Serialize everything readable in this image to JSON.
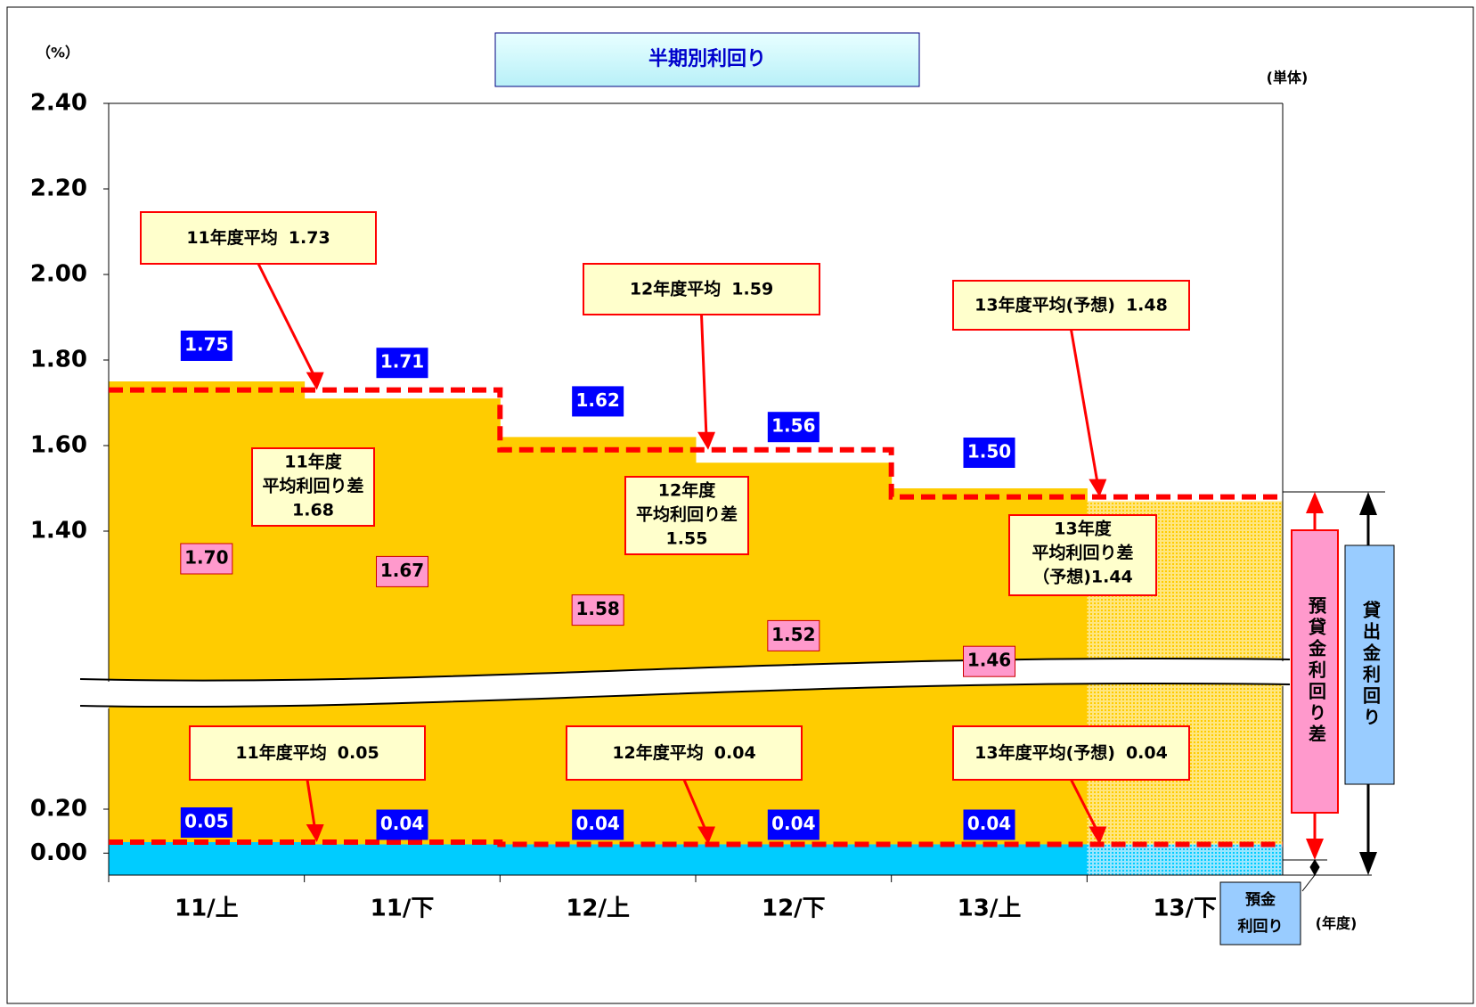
{
  "chart_data": {
    "type": "step-area",
    "title": "半期別利回り",
    "y_unit": "（%）",
    "scope": "(単体)",
    "x_unit": "(年度)",
    "categories": [
      "11/上",
      "11/下",
      "12/上",
      "12/下",
      "13/上",
      "13/下"
    ],
    "series": [
      {
        "name": "貸出金利回り",
        "color": "#ffcc00",
        "label_color": "#0000ff",
        "legend_color": "#99ccff",
        "values": [
          1.75,
          1.71,
          1.62,
          1.56,
          1.5,
          1.47
        ],
        "value_labels": [
          "1.75",
          "1.71",
          "1.62",
          "1.56",
          "1.50",
          null
        ],
        "hatch": [
          false,
          false,
          false,
          false,
          false,
          true
        ]
      },
      {
        "name": "預貸金利回り差",
        "color": "#ff99cc",
        "values": [
          1.7,
          1.67,
          1.58,
          1.52,
          1.46,
          null
        ],
        "value_labels": [
          "1.70",
          "1.67",
          "1.58",
          "1.52",
          "1.46",
          null
        ]
      },
      {
        "name": "預金利回り",
        "color": "#00ccff",
        "label_color": "#0000ff",
        "legend_color": "#99ccff",
        "values": [
          0.05,
          0.04,
          0.04,
          0.04,
          0.04,
          0.04
        ],
        "value_labels": [
          "0.05",
          "0.04",
          "0.04",
          "0.04",
          "0.04",
          null
        ],
        "hatch": [
          false,
          false,
          false,
          false,
          false,
          true
        ]
      }
    ],
    "loan_averages": {
      "labels": [
        "11年度平均",
        "12年度平均",
        "13年度平均(予想)"
      ],
      "values": [
        1.73,
        1.59,
        1.48
      ],
      "value_labels": [
        "1.73",
        "1.59",
        "1.48"
      ]
    },
    "deposit_averages": {
      "labels": [
        "11年度平均",
        "12年度平均",
        "13年度平均(予想)"
      ],
      "values": [
        0.05,
        0.04,
        0.04
      ],
      "value_labels": [
        "0.05",
        "0.04",
        "0.04"
      ]
    },
    "spread_averages": {
      "labels": [
        [
          "11年度",
          "平均利回り差"
        ],
        [
          "12年度",
          "平均利回り差"
        ],
        [
          "13年度",
          "平均利回り差"
        ]
      ],
      "values": [
        1.68,
        1.55,
        1.44
      ],
      "value_labels": [
        "1.68",
        "1.55",
        "（予想)1.44"
      ]
    },
    "ylim": [
      1.0,
      2.4
    ],
    "yticks": [
      {
        "value": 1.4,
        "label": "1.40"
      },
      {
        "value": 1.6,
        "label": "1.60"
      },
      {
        "value": 1.8,
        "label": "1.80"
      },
      {
        "value": 2.0,
        "label": "2.00"
      },
      {
        "value": 2.2,
        "label": "2.20"
      },
      {
        "value": 2.4,
        "label": "2.40"
      }
    ],
    "lower_ylim": [
      -0.1,
      0.8
    ],
    "lower_yticks": [
      {
        "value": 0,
        "label": "0.00"
      },
      {
        "value": 0.2,
        "label": "0.20"
      }
    ],
    "average_line_color": "#ff0000"
  }
}
